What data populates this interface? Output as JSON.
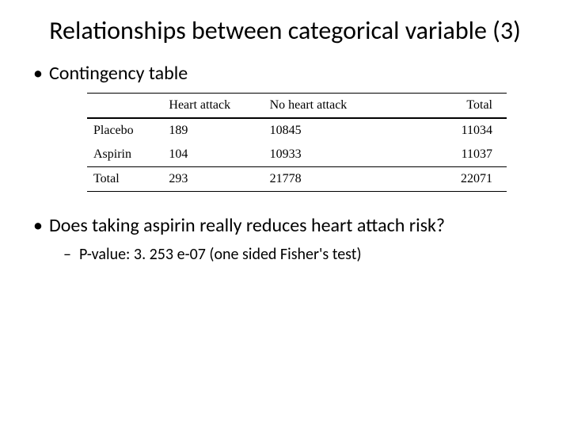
{
  "slide": {
    "title": "Relationships between categorical variable (3)",
    "bullet_contingency": "Contingency table",
    "bullet_question": "Does taking aspirin really reduces heart attach risk?",
    "bullet_pvalue": "P-value: 3. 253 e-07 (one sided Fisher's test)"
  },
  "table": {
    "header": {
      "blank": "",
      "col1": "Heart attack",
      "col2": "No heart attack",
      "col3": "Total"
    },
    "rows": [
      {
        "label": "Placebo",
        "col1": "189",
        "col2": "10845",
        "col3": "11034"
      },
      {
        "label": "Aspirin",
        "col1": "104",
        "col2": "10933",
        "col3": "11037"
      }
    ],
    "total": {
      "label": "Total",
      "col1": "293",
      "col2": "21778",
      "col3": "22071"
    }
  },
  "style": {
    "background": "#ffffff",
    "text_color": "#000000",
    "title_fontsize": 32,
    "bullet1_fontsize": 24,
    "bullet2_fontsize": 20,
    "table_fontsize": 16,
    "rule_color": "#000000"
  }
}
